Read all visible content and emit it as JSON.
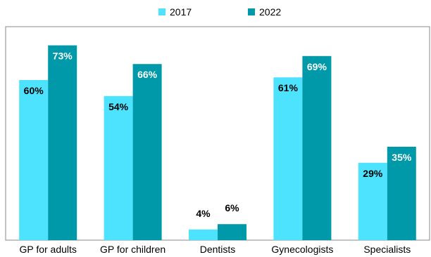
{
  "chart_data": {
    "type": "bar",
    "categories": [
      "GP for adults",
      "GP for children",
      "Dentists",
      "Gynecologists",
      "Specialists"
    ],
    "series": [
      {
        "name": "2017",
        "values": [
          60,
          54,
          4,
          61,
          29
        ],
        "labels": [
          "60%",
          "54%",
          "4%",
          "61%",
          "29%"
        ],
        "color": "#4de3ff",
        "label_color": "#000000"
      },
      {
        "name": "2022",
        "values": [
          73,
          66,
          6,
          69,
          35
        ],
        "labels": [
          "73%",
          "66%",
          "6%",
          "69%",
          "35%"
        ],
        "color": "#0099aa",
        "label_color": "#ffffff"
      }
    ],
    "ylim": [
      0,
      80
    ],
    "grid": false,
    "legend_position": "top-center",
    "title": "",
    "xlabel": "",
    "ylabel": ""
  }
}
